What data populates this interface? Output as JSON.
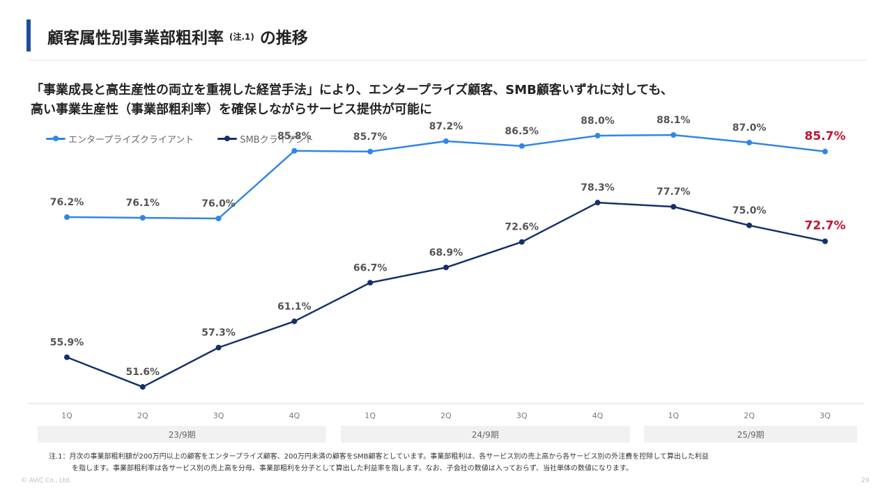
{
  "header": {
    "title": "顧客属性別事業部粗利率",
    "title_note": "(注.1)",
    "title_suffix": "の推移"
  },
  "subtitle": {
    "line1": "「事業成長と高生産性の両立を重視した経営手法」により、エンタープライズ顧客、SMB顧客いずれに対しても、",
    "line2": "高い事業生産性（事業部粗利率）を確保しながらサービス提供が可能に"
  },
  "colors": {
    "enterprise": "#2f86e8",
    "smb": "#14306a",
    "highlight": "#c0142e",
    "label": "#555555",
    "accent_bar": "#1f4e9c"
  },
  "chart_data": {
    "type": "line",
    "categories": [
      "1Q",
      "2Q",
      "3Q",
      "4Q",
      "1Q",
      "2Q",
      "3Q",
      "4Q",
      "1Q",
      "2Q",
      "3Q"
    ],
    "fiscal_years": [
      {
        "label": "23/9期",
        "quarters": 4
      },
      {
        "label": "24/9期",
        "quarters": 4
      },
      {
        "label": "25/9期",
        "quarters": 3
      }
    ],
    "series": [
      {
        "name": "エンタープライズクライアント",
        "color": "#2f86e8",
        "values": [
          76.2,
          76.1,
          76.0,
          85.8,
          85.7,
          87.2,
          86.5,
          88.0,
          88.1,
          87.0,
          85.7
        ],
        "labels": [
          "76.2%",
          "76.1%",
          "76.0%",
          "85.8%",
          "85.7%",
          "87.2%",
          "86.5%",
          "88.0%",
          "88.1%",
          "87.0%",
          "85.7%"
        ]
      },
      {
        "name": "SMBクライアント",
        "color": "#14306a",
        "values": [
          55.9,
          51.6,
          57.3,
          61.1,
          66.7,
          68.9,
          72.6,
          78.3,
          77.7,
          75.0,
          72.7
        ],
        "labels": [
          "55.9%",
          "51.6%",
          "57.3%",
          "61.1%",
          "66.7%",
          "68.9%",
          "72.6%",
          "78.3%",
          "77.7%",
          "75.0%",
          "72.7%"
        ]
      }
    ],
    "highlight_last_point": true,
    "legend_position": "top-left",
    "grid": false,
    "y_axis_visible": false
  },
  "footnote": {
    "line1": "注.1：月次の事業部粗利額が200万円以上の顧客をエンタープライズ顧客、200万円未満の顧客をSMB顧客としています。事業部粗利は、各サービス別の売上高から各サービス別の外注費を控除して算出した利益",
    "line2": "を指します。事業部粗利率は各サービス別の売上高を分母、事業部粗利を分子として算出した利益率を指します。なお、子会社の数値は入っておらず、当社単体の数値になります。"
  },
  "footer": {
    "copyright": "© AViC Co., Ltd.",
    "page_number": "29"
  }
}
